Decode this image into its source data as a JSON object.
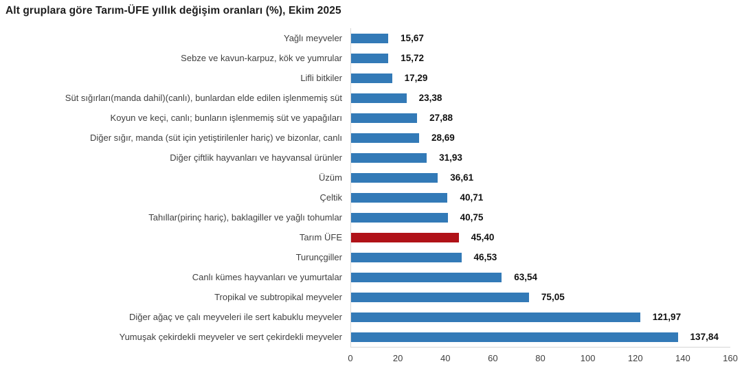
{
  "title": "Alt gruplara göre Tarım-ÜFE yıllık değişim oranları (%), Ekim 2025",
  "chart_data": {
    "type": "bar",
    "orientation": "horizontal",
    "title": "Alt gruplara göre Tarım-ÜFE yıllık değişim oranları (%), Ekim 2025",
    "xlabel": "",
    "ylabel": "",
    "xlim": [
      0,
      160
    ],
    "x_ticks": [
      0,
      20,
      40,
      60,
      80,
      100,
      120,
      140,
      160
    ],
    "grid": false,
    "legend": false,
    "bar_color": "#337ab7",
    "highlight_color": "#b01218",
    "axis_color": "#d6d6d6",
    "highlight_index": 10,
    "highlight_category": "Tarım ÜFE",
    "categories": [
      "Yağlı meyveler",
      "Sebze ve kavun-karpuz, kök ve yumrular",
      "Lifli bitkiler",
      "Süt sığırları(manda dahil)(canlı), bunlardan elde edilen işlenmemiş süt",
      "Koyun ve keçi, canlı; bunların işlenmemiş süt ve yapağıları",
      "Diğer sığır, manda (süt için yetiştirilenler hariç) ve bizonlar, canlı",
      "Diğer çiftlik hayvanları ve hayvansal ürünler",
      "Üzüm",
      "Çeltik",
      "Tahıllar(pirinç hariç), baklagiller ve yağlı tohumlar",
      "Tarım ÜFE",
      "Turunçgiller",
      "Canlı kümes hayvanları ve yumurtalar",
      "Tropikal ve subtropikal meyveler",
      "Diğer ağaç ve çalı meyveleri ile sert kabuklu meyveler",
      "Yumuşak çekirdekli meyveler ve sert çekirdekli meyveler"
    ],
    "values": [
      15.67,
      15.72,
      17.29,
      23.38,
      27.88,
      28.69,
      31.93,
      36.61,
      40.71,
      40.75,
      45.4,
      46.53,
      63.54,
      75.05,
      121.97,
      137.84
    ],
    "value_labels": [
      "15,67",
      "15,72",
      "17,29",
      "23,38",
      "27,88",
      "28,69",
      "31,93",
      "36,61",
      "40,71",
      "40,75",
      "45,40",
      "46,53",
      "63,54",
      "75,05",
      "121,97",
      "137,84"
    ]
  }
}
